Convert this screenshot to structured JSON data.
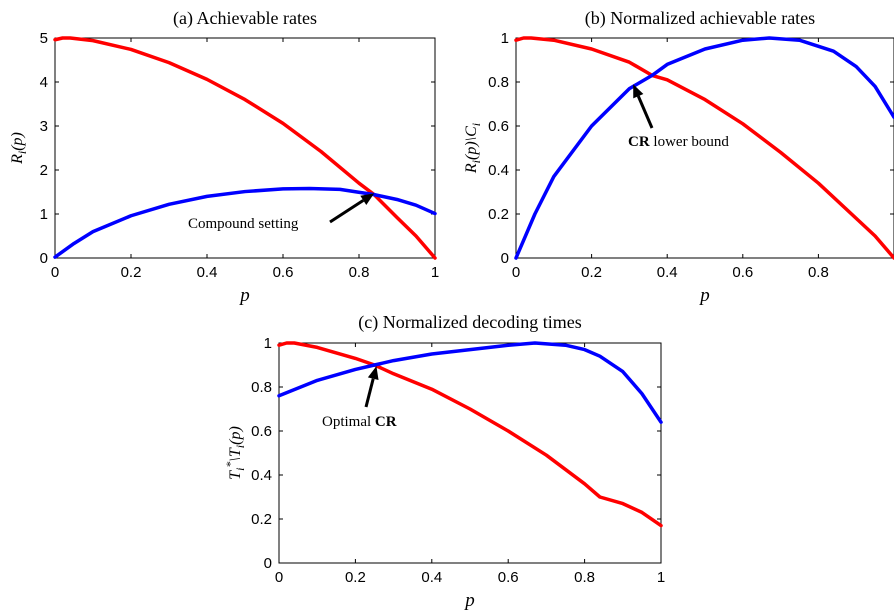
{
  "chart_data": [
    {
      "id": "a",
      "type": "line",
      "title": "(a) Achievable rates",
      "xlabel": "p",
      "ylabel": "R_i(p)",
      "xlim": [
        0,
        1
      ],
      "ylim": [
        0,
        5
      ],
      "xticks": [
        0,
        0.2,
        0.4,
        0.6,
        0.8,
        1
      ],
      "xtick_labels": [
        "0",
        "0.2",
        "0.4",
        "0.6",
        "0.8",
        "1"
      ],
      "yticks": [
        0,
        1,
        2,
        3,
        4,
        5
      ],
      "ytick_labels": [
        "0",
        "1",
        "2",
        "3",
        "4",
        "5"
      ],
      "grid": false,
      "series": [
        {
          "color": "#ff0000",
          "x": [
            0,
            0.02,
            0.04,
            0.1,
            0.2,
            0.3,
            0.4,
            0.5,
            0.6,
            0.7,
            0.8,
            0.84,
            0.9,
            0.95,
            1.0
          ],
          "y": [
            4.96,
            5.0,
            5.0,
            4.94,
            4.74,
            4.44,
            4.06,
            3.6,
            3.06,
            2.42,
            1.7,
            1.44,
            0.92,
            0.5,
            0.0
          ]
        },
        {
          "color": "#0000ff",
          "x": [
            0,
            0.05,
            0.1,
            0.2,
            0.3,
            0.4,
            0.5,
            0.6,
            0.67,
            0.75,
            0.84,
            0.9,
            0.95,
            1.0
          ],
          "y": [
            0.02,
            0.33,
            0.6,
            0.96,
            1.22,
            1.4,
            1.51,
            1.57,
            1.58,
            1.56,
            1.44,
            1.33,
            1.2,
            1.01
          ]
        }
      ],
      "annotations": [
        {
          "text": "Compound setting",
          "bold_prefix": "",
          "arrow_to": [
            0.84,
            1.47
          ]
        }
      ]
    },
    {
      "id": "b",
      "type": "line",
      "title": "(b) Normalized achievable rates",
      "xlabel": "p",
      "ylabel": "R_i(p)\\C_i",
      "xlim": [
        0,
        1
      ],
      "ylim": [
        0,
        1
      ],
      "xticks": [
        0,
        0.2,
        0.4,
        0.6,
        0.8
      ],
      "xtick_labels": [
        "0",
        "0.2",
        "0.4",
        "0.6",
        "0.8"
      ],
      "yticks": [
        0,
        0.2,
        0.4,
        0.6,
        0.8,
        1
      ],
      "ytick_labels": [
        "0",
        "0.2",
        "0.4",
        "0.6",
        "0.8",
        "1"
      ],
      "grid": false,
      "series": [
        {
          "color": "#ff0000",
          "x": [
            0,
            0.02,
            0.04,
            0.1,
            0.2,
            0.3,
            0.36,
            0.4,
            0.5,
            0.6,
            0.7,
            0.8,
            0.9,
            0.95,
            1.0
          ],
          "y": [
            0.99,
            1.0,
            1.0,
            0.99,
            0.95,
            0.89,
            0.83,
            0.81,
            0.72,
            0.61,
            0.48,
            0.34,
            0.18,
            0.1,
            0.0
          ]
        },
        {
          "color": "#0000ff",
          "x": [
            0,
            0.02,
            0.05,
            0.1,
            0.2,
            0.3,
            0.36,
            0.4,
            0.5,
            0.6,
            0.67,
            0.75,
            0.84,
            0.9,
            0.95,
            1.0
          ],
          "y": [
            0.0,
            0.08,
            0.2,
            0.37,
            0.6,
            0.77,
            0.83,
            0.88,
            0.95,
            0.99,
            1.0,
            0.99,
            0.94,
            0.87,
            0.78,
            0.64
          ]
        }
      ],
      "annotations": [
        {
          "text": "lower bound",
          "bold_prefix": "CR",
          "arrow_to": [
            0.31,
            0.79
          ]
        }
      ]
    },
    {
      "id": "c",
      "type": "line",
      "title": "(c) Normalized decoding times",
      "xlabel": "p",
      "ylabel": "T_i^*\\T_i(p)",
      "xlim": [
        0,
        1
      ],
      "ylim": [
        0,
        1
      ],
      "xticks": [
        0,
        0.2,
        0.4,
        0.6,
        0.8,
        1
      ],
      "xtick_labels": [
        "0",
        "0.2",
        "0.4",
        "0.6",
        "0.8",
        "1"
      ],
      "yticks": [
        0,
        0.2,
        0.4,
        0.6,
        0.8,
        1
      ],
      "ytick_labels": [
        "0",
        "0.2",
        "0.4",
        "0.6",
        "0.8",
        "1"
      ],
      "grid": false,
      "series": [
        {
          "color": "#ff0000",
          "x": [
            0,
            0.02,
            0.04,
            0.1,
            0.2,
            0.25,
            0.3,
            0.4,
            0.5,
            0.6,
            0.7,
            0.8,
            0.84,
            0.9,
            0.95,
            1.0
          ],
          "y": [
            0.99,
            1.0,
            1.0,
            0.98,
            0.93,
            0.9,
            0.86,
            0.79,
            0.7,
            0.6,
            0.49,
            0.36,
            0.3,
            0.27,
            0.23,
            0.17
          ]
        },
        {
          "color": "#0000ff",
          "x": [
            0,
            0.1,
            0.2,
            0.25,
            0.3,
            0.4,
            0.5,
            0.6,
            0.67,
            0.75,
            0.8,
            0.84,
            0.9,
            0.95,
            1.0
          ],
          "y": [
            0.76,
            0.83,
            0.88,
            0.9,
            0.92,
            0.95,
            0.97,
            0.99,
            1.0,
            0.99,
            0.97,
            0.94,
            0.87,
            0.77,
            0.64
          ]
        }
      ],
      "annotations": [
        {
          "text": "Optimal",
          "bold_suffix": "CR",
          "arrow_to": [
            0.255,
            0.895
          ]
        }
      ]
    }
  ]
}
